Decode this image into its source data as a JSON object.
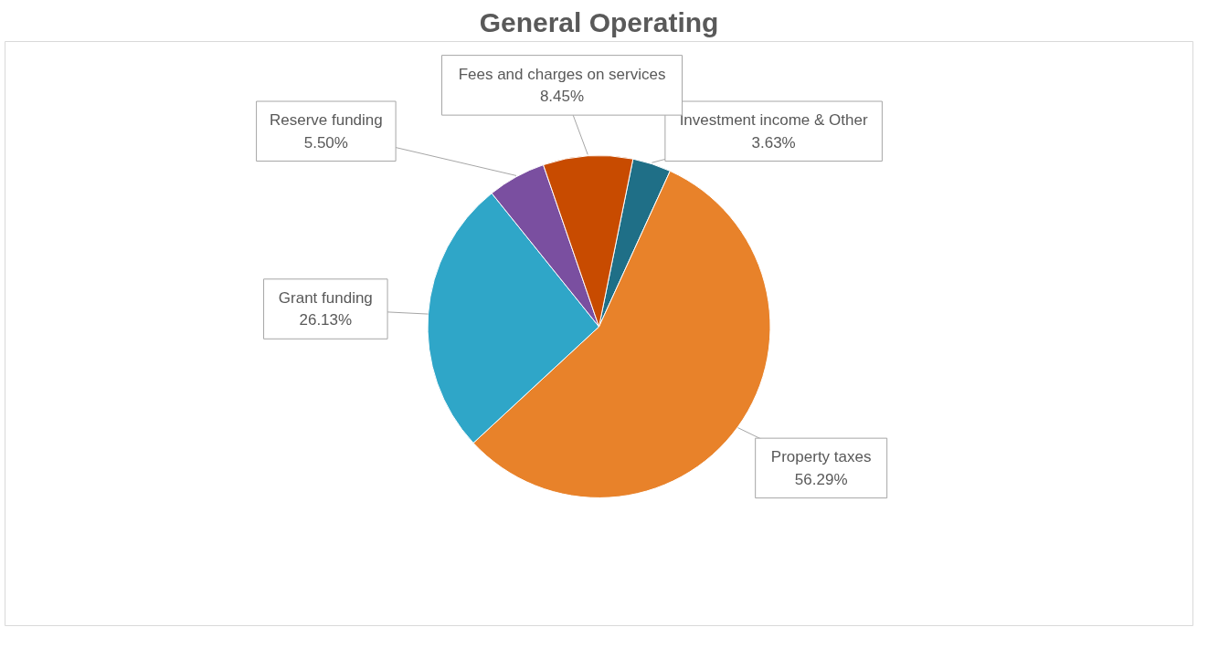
{
  "chart_data": {
    "type": "pie",
    "title": "General Operating",
    "categories": [
      "Investment income & Other",
      "Property taxes",
      "Grant funding",
      "Reserve funding",
      "Fees and charges on services"
    ],
    "values": [
      3.63,
      56.29,
      26.13,
      5.5,
      8.45
    ],
    "value_labels": [
      "3.63%",
      "56.29%",
      "26.13%",
      "5.50%",
      "8.45%"
    ],
    "colors": [
      "#1f6f87",
      "#e8822a",
      "#2fa6c8",
      "#7a4fa0",
      "#c84b00"
    ],
    "legend": false
  }
}
